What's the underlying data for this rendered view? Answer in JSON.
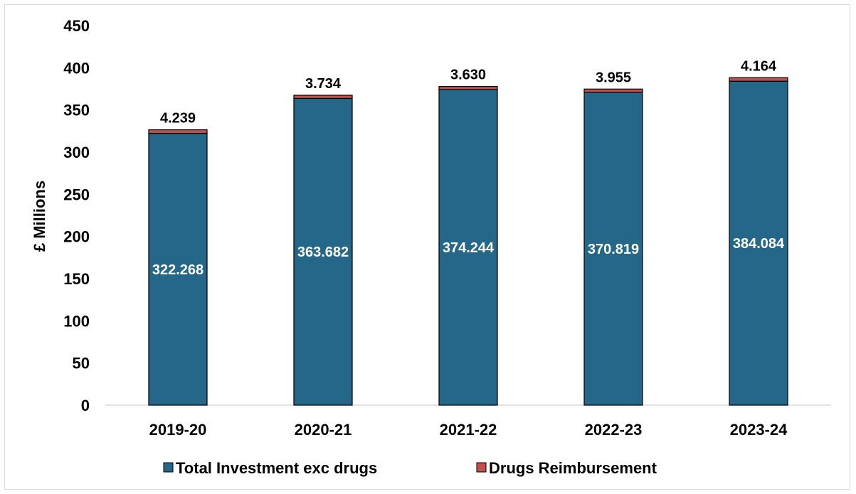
{
  "chart_data": {
    "type": "bar",
    "stacked": true,
    "categories": [
      "2019-20",
      "2020-21",
      "2021-22",
      "2022-23",
      "2023-24"
    ],
    "series": [
      {
        "name": "Total Investment exc drugs",
        "values": [
          322.268,
          363.682,
          374.244,
          370.819,
          384.084
        ],
        "labels": [
          "322.268",
          "363.682",
          "374.244",
          "370.819",
          "384.084"
        ],
        "color": "#246789"
      },
      {
        "name": "Drugs Reimbursement",
        "values": [
          4.239,
          3.734,
          3.63,
          3.955,
          4.164
        ],
        "labels": [
          "4.239",
          "3.734",
          "3.630",
          "3.955",
          "4.164"
        ],
        "color": "#c0504d"
      }
    ],
    "ylabel": "£ Millions",
    "xlabel": "",
    "ylim": [
      0,
      450
    ],
    "yticks": [
      "0",
      "50",
      "100",
      "150",
      "200",
      "250",
      "300",
      "350",
      "400",
      "450"
    ],
    "grid": false,
    "legend_position": "bottom"
  }
}
